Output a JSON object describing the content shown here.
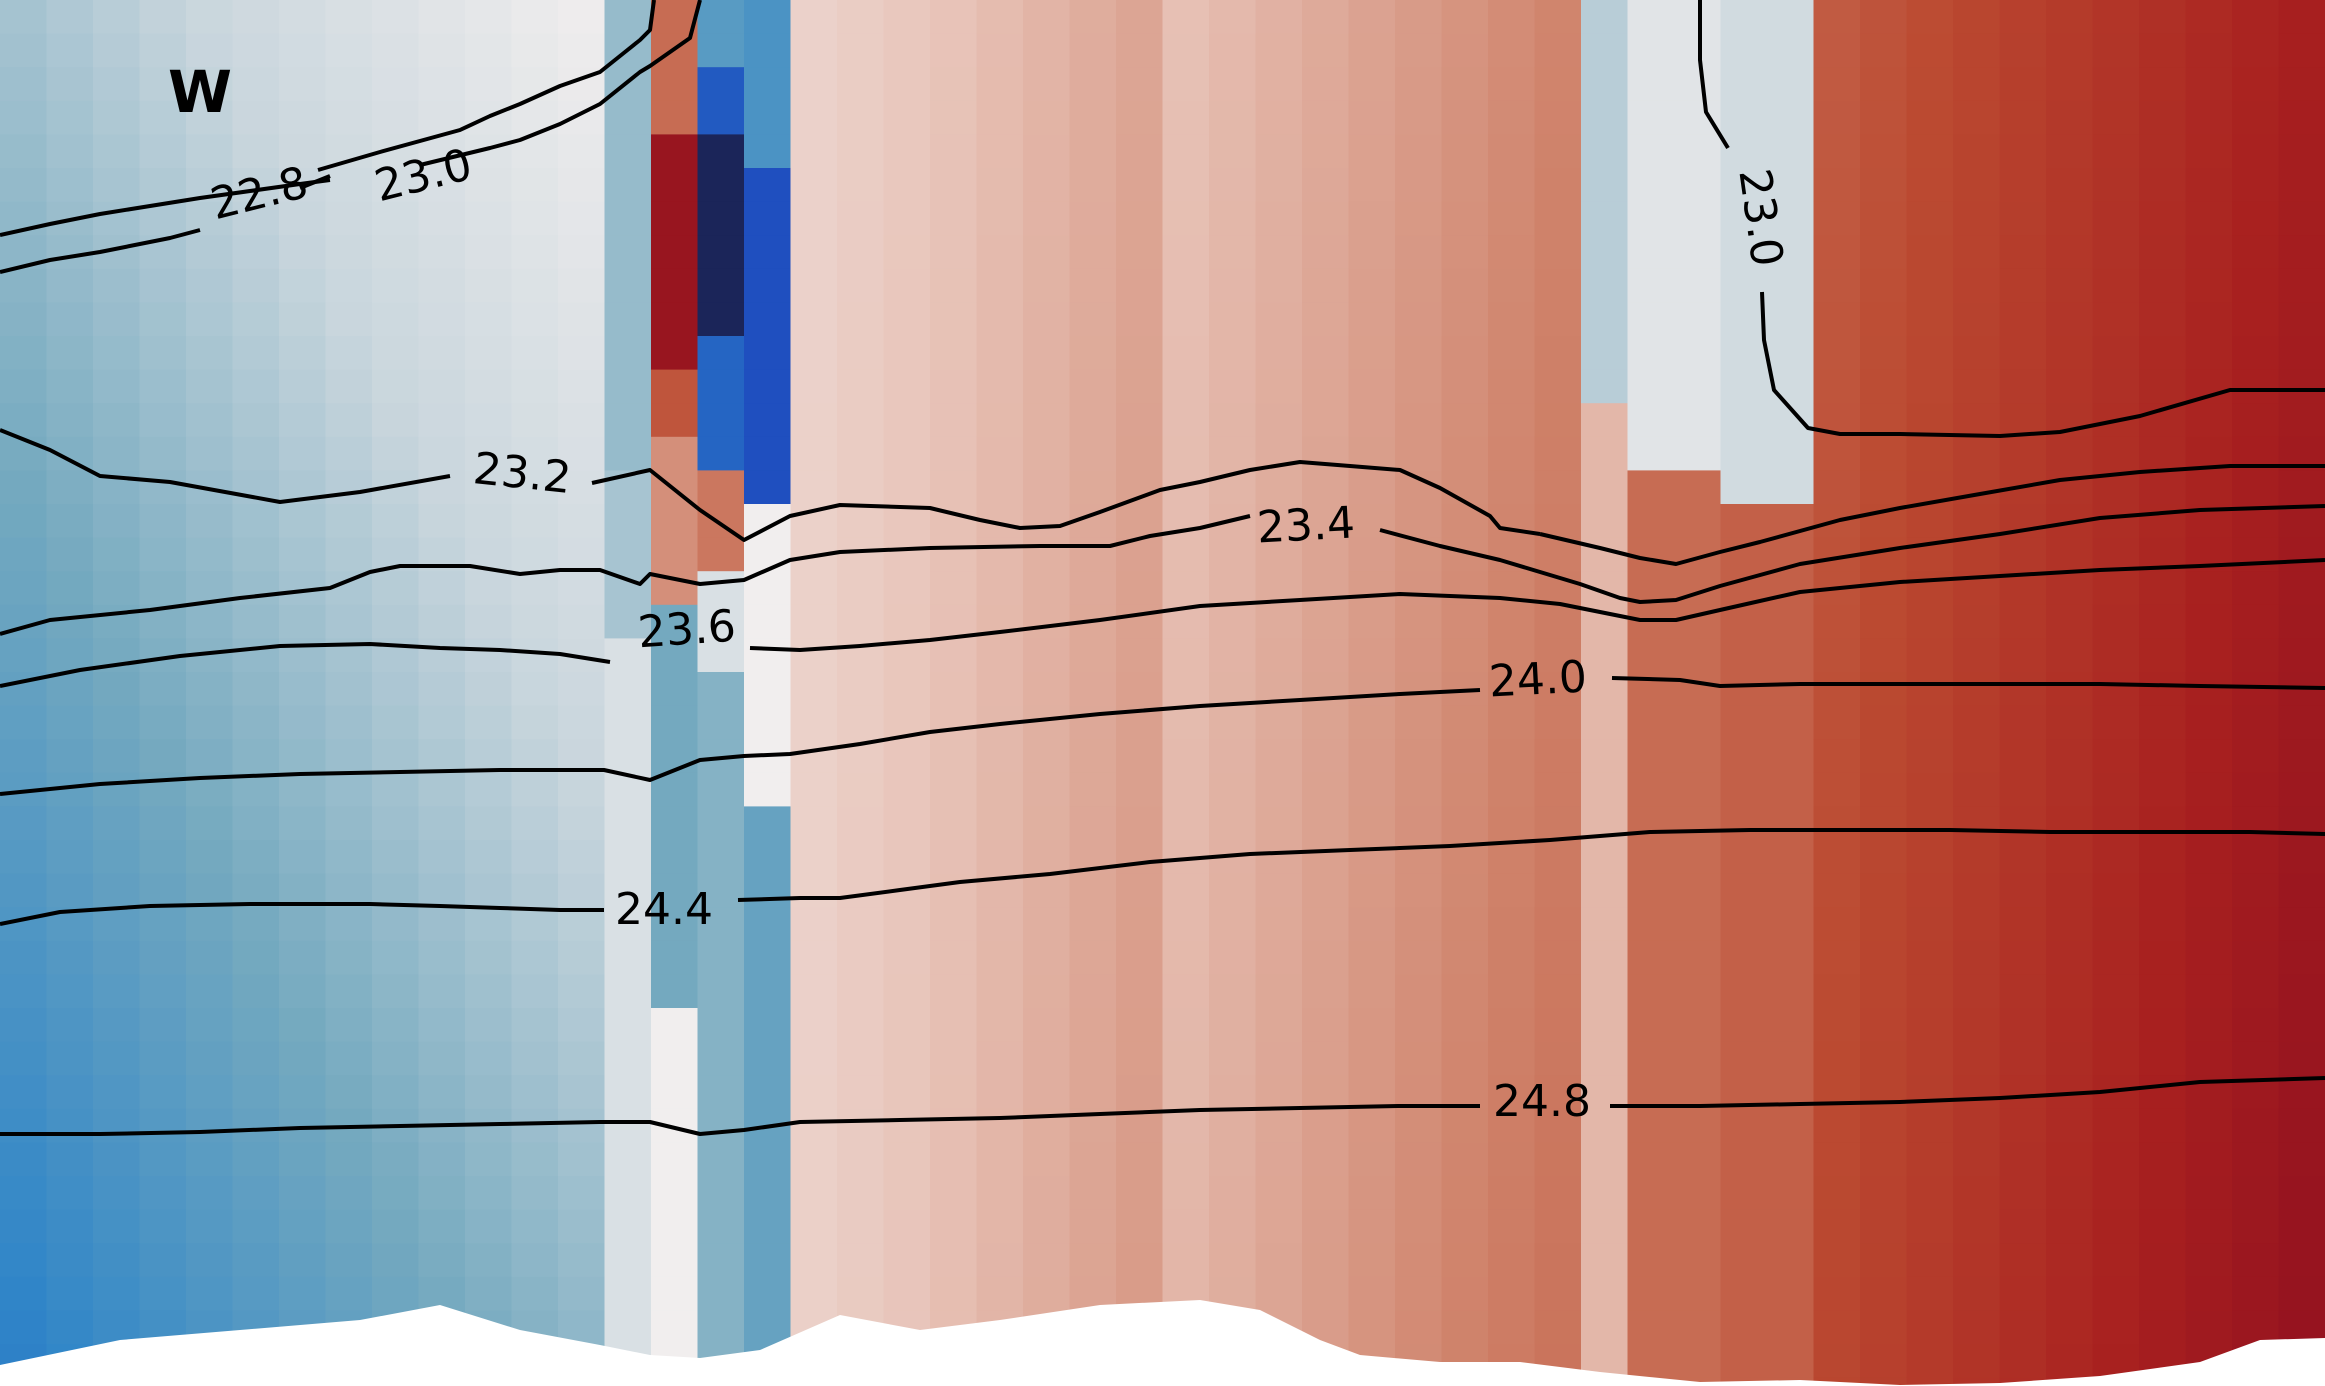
{
  "chart_data": {
    "type": "heatmap",
    "title": "",
    "xlabel": "",
    "ylabel": "",
    "panel_label": "W",
    "colormap": {
      "name": "diverging-blue-white-red",
      "stops": [
        "#1a1a40",
        "#1f4fbf",
        "#2f85c8",
        "#74a9bf",
        "#c9d6dd",
        "#f1eeee",
        "#e8c4b9",
        "#cf826a",
        "#bb4a31",
        "#a8201f",
        "#87091f"
      ]
    },
    "contour_levels": [
      22.8,
      23.0,
      23.2,
      23.4,
      23.6,
      24.0,
      24.4,
      24.8
    ],
    "contour_labels": [
      {
        "text": "22.8",
        "level": 22.8
      },
      {
        "text": "23.0",
        "level": 23.0
      },
      {
        "text": "23.0",
        "level": 23.0
      },
      {
        "text": "23.2",
        "level": 23.2
      },
      {
        "text": "23.4",
        "level": 23.4
      },
      {
        "text": "23.6",
        "level": 23.6
      },
      {
        "text": "24.0",
        "level": 24.0
      },
      {
        "text": "24.4",
        "level": 24.4
      },
      {
        "text": "24.8",
        "level": 24.8
      }
    ],
    "grid": false,
    "legend": "none"
  }
}
